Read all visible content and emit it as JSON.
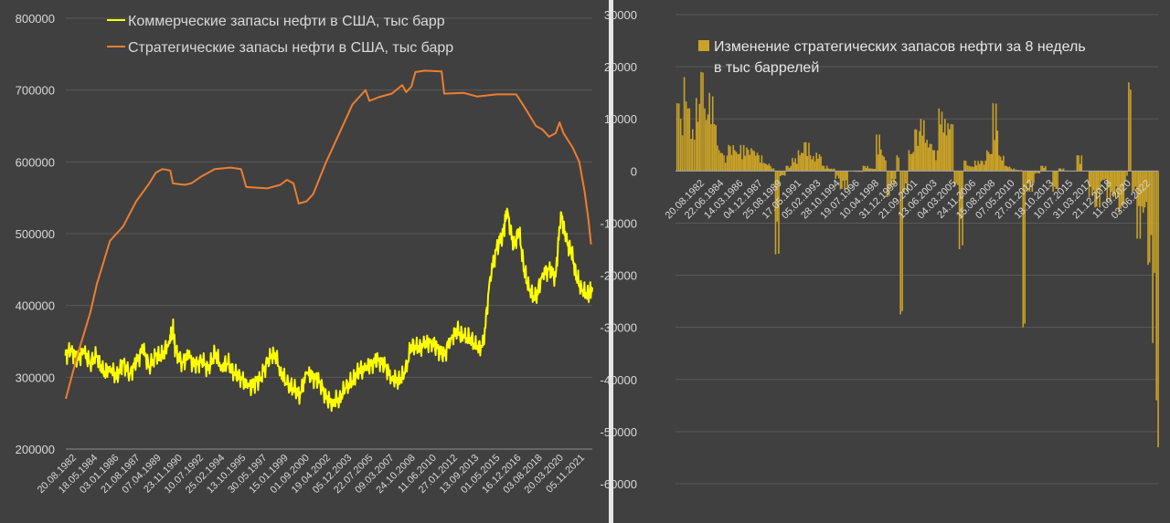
{
  "chart_data": [
    {
      "type": "line",
      "yticks": [
        "800000",
        "700000",
        "600000",
        "500000",
        "400000",
        "300000",
        "200000"
      ],
      "ylim": [
        200000,
        800000
      ],
      "x_labels": [
        "20.08.1982",
        "18.05.1984",
        "03.01.1986",
        "21.08.1987",
        "07.04.1989",
        "23.11.1990",
        "10.07.1992",
        "25.02.1994",
        "13.10.1995",
        "30.05.1997",
        "15.01.1999",
        "01.09.2000",
        "19.04.2002",
        "05.12.2003",
        "22.07.2005",
        "09.03.2007",
        "24.10.2008",
        "11.06.2010",
        "27.01.2012",
        "13.09.2013",
        "01.05.2015",
        "16.12.2016",
        "03.08.2018",
        "20.03.2020",
        "05.11.2021"
      ],
      "x_range": [
        1982.63,
        2022.8
      ],
      "series": [
        {
          "name": "Коммерческие запасы нефти в США, тыс барр",
          "color": "#ffff00",
          "points": [
            [
              1982.6,
              330000
            ],
            [
              1983.0,
              340000
            ],
            [
              1983.5,
              325000
            ],
            [
              1984.0,
              335000
            ],
            [
              1984.5,
              320000
            ],
            [
              1985.0,
              330000
            ],
            [
              1985.5,
              305000
            ],
            [
              1986.0,
              315000
            ],
            [
              1986.5,
              300000
            ],
            [
              1987.0,
              320000
            ],
            [
              1987.5,
              305000
            ],
            [
              1988.0,
              320000
            ],
            [
              1988.5,
              340000
            ],
            [
              1989.0,
              315000
            ],
            [
              1989.5,
              330000
            ],
            [
              1990.0,
              330000
            ],
            [
              1990.5,
              350000
            ],
            [
              1990.8,
              370000
            ],
            [
              1991.0,
              335000
            ],
            [
              1991.5,
              320000
            ],
            [
              1992.0,
              330000
            ],
            [
              1992.5,
              315000
            ],
            [
              1993.0,
              325000
            ],
            [
              1993.5,
              310000
            ],
            [
              1994.0,
              335000
            ],
            [
              1994.5,
              315000
            ],
            [
              1995.0,
              320000
            ],
            [
              1995.5,
              305000
            ],
            [
              1996.0,
              300000
            ],
            [
              1996.5,
              285000
            ],
            [
              1997.0,
              290000
            ],
            [
              1997.5,
              300000
            ],
            [
              1998.0,
              320000
            ],
            [
              1998.5,
              335000
            ],
            [
              1999.0,
              310000
            ],
            [
              1999.5,
              290000
            ],
            [
              2000.0,
              285000
            ],
            [
              2000.5,
              275000
            ],
            [
              2001.0,
              305000
            ],
            [
              2001.5,
              300000
            ],
            [
              2002.0,
              295000
            ],
            [
              2002.5,
              270000
            ],
            [
              2003.0,
              265000
            ],
            [
              2003.5,
              270000
            ],
            [
              2004.0,
              285000
            ],
            [
              2004.5,
              295000
            ],
            [
              2005.0,
              310000
            ],
            [
              2005.5,
              310000
            ],
            [
              2006.0,
              320000
            ],
            [
              2006.5,
              325000
            ],
            [
              2007.0,
              315000
            ],
            [
              2007.5,
              300000
            ],
            [
              2008.0,
              295000
            ],
            [
              2008.5,
              305000
            ],
            [
              2009.0,
              345000
            ],
            [
              2009.5,
              340000
            ],
            [
              2010.0,
              345000
            ],
            [
              2010.5,
              350000
            ],
            [
              2011.0,
              340000
            ],
            [
              2011.5,
              330000
            ],
            [
              2012.0,
              355000
            ],
            [
              2012.5,
              365000
            ],
            [
              2013.0,
              355000
            ],
            [
              2013.5,
              355000
            ],
            [
              2014.0,
              340000
            ],
            [
              2014.5,
              345000
            ],
            [
              2015.0,
              440000
            ],
            [
              2015.5,
              480000
            ],
            [
              2016.0,
              500000
            ],
            [
              2016.3,
              535000
            ],
            [
              2016.8,
              480000
            ],
            [
              2017.2,
              505000
            ],
            [
              2017.6,
              450000
            ],
            [
              2018.0,
              420000
            ],
            [
              2018.5,
              410000
            ],
            [
              2019.0,
              445000
            ],
            [
              2019.5,
              450000
            ],
            [
              2020.0,
              440000
            ],
            [
              2020.4,
              530000
            ],
            [
              2020.8,
              490000
            ],
            [
              2021.2,
              475000
            ],
            [
              2021.6,
              440000
            ],
            [
              2022.0,
              420000
            ],
            [
              2022.5,
              415000
            ],
            [
              2022.8,
              425000
            ]
          ]
        },
        {
          "name": "Стратегические запасы нефти в США, тыс барр",
          "color": "#ed7d31",
          "points": [
            [
              1982.63,
              270000
            ],
            [
              1983.5,
              330000
            ],
            [
              1984.5,
              390000
            ],
            [
              1985.0,
              430000
            ],
            [
              1985.5,
              460000
            ],
            [
              1986.0,
              490000
            ],
            [
              1987.0,
              510000
            ],
            [
              1988.0,
              545000
            ],
            [
              1989.0,
              570000
            ],
            [
              1989.5,
              585000
            ],
            [
              1990.0,
              590000
            ],
            [
              1990.6,
              588000
            ],
            [
              1990.8,
              570000
            ],
            [
              1991.7,
              568000
            ],
            [
              1992.2,
              570000
            ],
            [
              1993.0,
              580000
            ],
            [
              1994.0,
              590000
            ],
            [
              1995.2,
              592000
            ],
            [
              1996.0,
              590000
            ],
            [
              1996.4,
              565000
            ],
            [
              1998.0,
              563000
            ],
            [
              1999.0,
              568000
            ],
            [
              1999.5,
              575000
            ],
            [
              2000.0,
              570000
            ],
            [
              2000.4,
              542000
            ],
            [
              2001.0,
              545000
            ],
            [
              2001.5,
              555000
            ],
            [
              2002.5,
              600000
            ],
            [
              2003.5,
              640000
            ],
            [
              2004.5,
              680000
            ],
            [
              2005.5,
              700000
            ],
            [
              2005.8,
              685000
            ],
            [
              2006.5,
              690000
            ],
            [
              2007.5,
              695000
            ],
            [
              2008.3,
              707000
            ],
            [
              2008.6,
              697000
            ],
            [
              2009.0,
              705000
            ],
            [
              2009.3,
              725000
            ],
            [
              2010.0,
              727000
            ],
            [
              2011.3,
              726000
            ],
            [
              2011.5,
              695000
            ],
            [
              2013.0,
              696000
            ],
            [
              2014.0,
              691000
            ],
            [
              2015.5,
              694000
            ],
            [
              2017.0,
              694000
            ],
            [
              2017.5,
              680000
            ],
            [
              2018.0,
              665000
            ],
            [
              2018.5,
              650000
            ],
            [
              2019.0,
              645000
            ],
            [
              2019.5,
              635000
            ],
            [
              2020.0,
              640000
            ],
            [
              2020.3,
              655000
            ],
            [
              2020.6,
              640000
            ],
            [
              2021.3,
              620000
            ],
            [
              2021.8,
              600000
            ],
            [
              2022.2,
              560000
            ],
            [
              2022.5,
              520000
            ],
            [
              2022.7,
              485000
            ]
          ]
        }
      ]
    },
    {
      "type": "bar",
      "yticks": [
        "30000",
        "20000",
        "10000",
        "0",
        "-10000",
        "-20000",
        "-30000",
        "-40000",
        "-50000",
        "-60000"
      ],
      "ylim": [
        -60000,
        30000
      ],
      "x_labels": [
        "20.08.1982",
        "22.06.1984",
        "14.03.1986",
        "04.12.1987",
        "25.08.1989",
        "17.05.1991",
        "05.02.1993",
        "28.10.1994",
        "19.07.1996",
        "10.04.1998",
        "31.12.1999",
        "21.09.2001",
        "13.06.2003",
        "04.03.2005",
        "24.11.2006",
        "15.08.2008",
        "07.05.2010",
        "27.01.2012",
        "18.10.2013",
        "10.07.2015",
        "31.03.2017",
        "21.12.2018",
        "11.09.2020",
        "03.06.2022"
      ],
      "x_range": [
        1982.63,
        2022.8
      ],
      "series": [
        {
          "name": "Изменение стратегических запасов нефти за 8 недель в тыс баррелей",
          "color": "#c9a227",
          "points": [
            [
              1982.7,
              13000
            ],
            [
              1983.0,
              10000
            ],
            [
              1983.3,
              18000
            ],
            [
              1983.6,
              12000
            ],
            [
              1984.0,
              8000
            ],
            [
              1984.3,
              14000
            ],
            [
              1984.7,
              19000
            ],
            [
              1985.0,
              12000
            ],
            [
              1985.4,
              15000
            ],
            [
              1985.8,
              9000
            ],
            [
              1986.2,
              4000
            ],
            [
              1986.6,
              3000
            ],
            [
              1987.0,
              5000
            ],
            [
              1987.5,
              4000
            ],
            [
              1988.0,
              5000
            ],
            [
              1988.5,
              4500
            ],
            [
              1989.0,
              4000
            ],
            [
              1989.5,
              3000
            ],
            [
              1990.0,
              1500
            ],
            [
              1990.6,
              500
            ],
            [
              1990.9,
              -16000
            ],
            [
              1991.3,
              -1000
            ],
            [
              1991.8,
              1000
            ],
            [
              1992.3,
              2500
            ],
            [
              1992.8,
              4000
            ],
            [
              1993.3,
              5500
            ],
            [
              1993.8,
              3000
            ],
            [
              1994.3,
              3500
            ],
            [
              1994.8,
              1000
            ],
            [
              1995.3,
              500
            ],
            [
              1995.9,
              -1500
            ],
            [
              1996.3,
              -3500
            ],
            [
              1997.0,
              0
            ],
            [
              1997.6,
              -200
            ],
            [
              1998.2,
              1000
            ],
            [
              1998.8,
              500
            ],
            [
              1999.3,
              7000
            ],
            [
              1999.8,
              3000
            ],
            [
              2000.2,
              -5000
            ],
            [
              2000.5,
              -3000
            ],
            [
              2001.0,
              3000
            ],
            [
              2001.3,
              -27500
            ],
            [
              2001.6,
              -4000
            ],
            [
              2002.0,
              4000
            ],
            [
              2002.5,
              8000
            ],
            [
              2003.0,
              10000
            ],
            [
              2003.5,
              6000
            ],
            [
              2004.0,
              4000
            ],
            [
              2004.5,
              12000
            ],
            [
              2005.0,
              10000
            ],
            [
              2005.5,
              9000
            ],
            [
              2005.8,
              -3000
            ],
            [
              2006.2,
              -15000
            ],
            [
              2006.6,
              2000
            ],
            [
              2007.0,
              1000
            ],
            [
              2007.5,
              2000
            ],
            [
              2008.0,
              2000
            ],
            [
              2008.5,
              4000
            ],
            [
              2009.0,
              13000
            ],
            [
              2009.5,
              3000
            ],
            [
              2010.0,
              1000
            ],
            [
              2010.5,
              500
            ],
            [
              2011.0,
              200
            ],
            [
              2011.5,
              -30000
            ],
            [
              2011.8,
              -4000
            ],
            [
              2012.5,
              -500
            ],
            [
              2013.0,
              1000
            ],
            [
              2013.5,
              0
            ],
            [
              2014.0,
              -4000
            ],
            [
              2014.5,
              500
            ],
            [
              2015.0,
              0
            ],
            [
              2015.5,
              0
            ],
            [
              2016.0,
              3000
            ],
            [
              2016.5,
              0
            ],
            [
              2017.0,
              -5000
            ],
            [
              2017.5,
              -7000
            ],
            [
              2018.0,
              -2000
            ],
            [
              2018.5,
              -6000
            ],
            [
              2019.0,
              -5000
            ],
            [
              2019.5,
              -8000
            ],
            [
              2020.0,
              -2000
            ],
            [
              2020.3,
              17000
            ],
            [
              2020.6,
              -4000
            ],
            [
              2021.0,
              -13000
            ],
            [
              2021.5,
              -8000
            ],
            [
              2021.9,
              -18000
            ],
            [
              2022.3,
              -33000
            ],
            [
              2022.6,
              -44000
            ],
            [
              2022.75,
              -53000
            ]
          ]
        }
      ]
    }
  ]
}
